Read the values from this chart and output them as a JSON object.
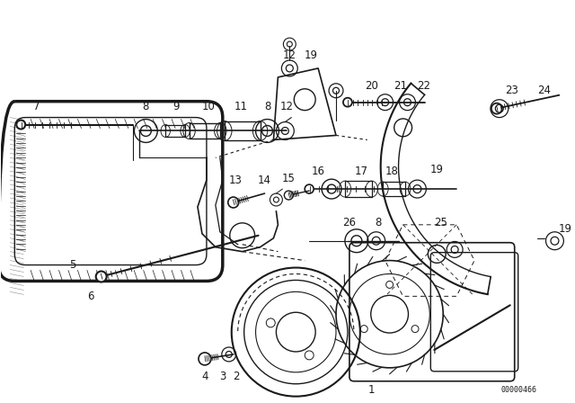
{
  "bg_color": "#ffffff",
  "line_color": "#1a1a1a",
  "part_number_text": "00000466",
  "fig_width": 6.4,
  "fig_height": 4.48,
  "dpi": 100
}
